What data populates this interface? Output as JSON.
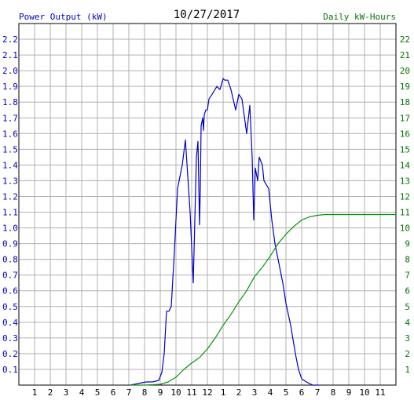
{
  "chart_data": {
    "type": "line",
    "title": "10/27/2017",
    "left_axis_label": "Power Output (kW)",
    "right_axis_label": "Daily kW-Hours",
    "left_label_color": "#0000cc",
    "right_label_color": "#007700",
    "x_ticks": [
      "1",
      "2",
      "3",
      "4",
      "5",
      "6",
      "7",
      "8",
      "9",
      "10",
      "11",
      "12",
      "1",
      "2",
      "3",
      "4",
      "5",
      "6",
      "7",
      "8",
      "9",
      "10",
      "11"
    ],
    "xlim": [
      0,
      24
    ],
    "ylim_left": [
      0,
      2.3
    ],
    "ylim_right": [
      0,
      23
    ],
    "y_left_ticks": [
      "0.1",
      "0.2",
      "0.3",
      "0.4",
      "0.5",
      "0.6",
      "0.7",
      "0.8",
      "0.9",
      "1.0",
      "1.1",
      "1.2",
      "1.3",
      "1.4",
      "1.5",
      "1.6",
      "1.7",
      "1.8",
      "1.9",
      "2.0",
      "2.1",
      "2.2"
    ],
    "y_right_ticks": [
      "1",
      "2",
      "3",
      "4",
      "5",
      "6",
      "7",
      "8",
      "9",
      "10",
      "11",
      "12",
      "13",
      "14",
      "15",
      "16",
      "17",
      "18",
      "19",
      "20",
      "21",
      "22"
    ],
    "grid": true,
    "series": [
      {
        "axis": "left",
        "color": "#0000cc",
        "x": [
          7.1,
          7.6,
          8.1,
          8.5,
          8.9,
          9.1,
          9.25,
          9.4,
          9.55,
          9.7,
          9.9,
          10.1,
          10.4,
          10.6,
          10.9,
          11.1,
          11.3,
          11.4,
          11.5,
          11.55,
          11.6,
          11.7,
          11.75,
          11.8,
          11.9,
          12.0,
          12.1,
          12.3,
          12.6,
          12.8,
          13.0,
          13.1,
          13.3,
          13.5,
          13.8,
          14.0,
          14.2,
          14.5,
          14.7,
          14.85,
          14.95,
          15.05,
          15.2,
          15.3,
          15.5,
          15.6,
          15.9,
          16.1,
          16.3,
          16.5,
          16.8,
          17.0,
          17.3,
          17.6,
          17.8,
          18.0,
          18.3,
          18.5,
          18.7,
          18.9,
          19.1
        ],
        "values": [
          0,
          0.01,
          0.02,
          0.02,
          0.03,
          0.08,
          0.2,
          0.47,
          0.47,
          0.5,
          0.85,
          1.25,
          1.4,
          1.56,
          1.1,
          0.65,
          1.45,
          1.55,
          1.02,
          1.25,
          1.65,
          1.7,
          1.62,
          1.72,
          1.75,
          1.75,
          1.82,
          1.85,
          1.9,
          1.88,
          1.95,
          1.94,
          1.94,
          1.88,
          1.75,
          1.85,
          1.82,
          1.6,
          1.78,
          1.45,
          1.05,
          1.38,
          1.3,
          1.45,
          1.4,
          1.3,
          1.25,
          1.05,
          0.9,
          0.8,
          0.65,
          0.52,
          0.38,
          0.2,
          0.1,
          0.04,
          0.02,
          0.01,
          0,
          0,
          0
        ]
      },
      {
        "axis": "right",
        "color": "#009900",
        "x": [
          7.1,
          8.0,
          9.0,
          9.5,
          10.0,
          10.5,
          11.0,
          11.5,
          12.0,
          12.5,
          13.0,
          13.5,
          14.0,
          14.5,
          15.0,
          15.5,
          16.0,
          16.5,
          17.0,
          17.5,
          18.0,
          18.5,
          19.0,
          19.5,
          20.5,
          22.0,
          24.0
        ],
        "values": [
          0,
          0,
          0.05,
          0.2,
          0.5,
          1.0,
          1.4,
          1.75,
          2.3,
          3.0,
          3.8,
          4.5,
          5.3,
          6.0,
          6.9,
          7.5,
          8.2,
          9.0,
          9.6,
          10.1,
          10.5,
          10.7,
          10.8,
          10.85,
          10.85,
          10.85,
          10.85
        ]
      }
    ]
  }
}
